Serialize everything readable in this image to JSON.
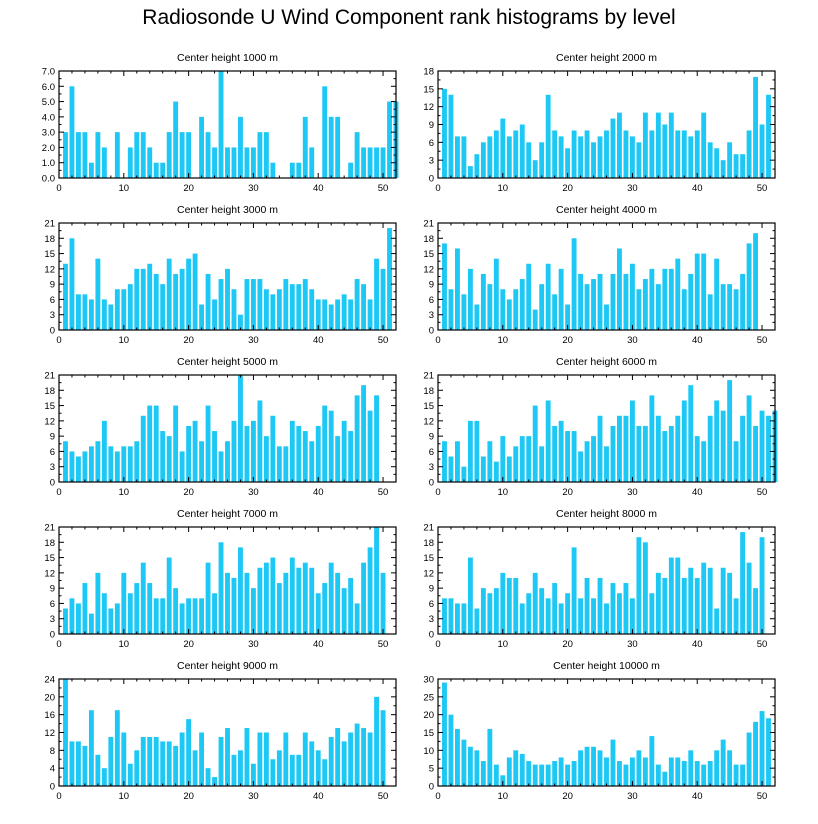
{
  "page_title": "Radiosonde U Wind Component rank histograms by level",
  "bar_color": "#1ec8f5",
  "chart_data": [
    {
      "type": "bar",
      "title": "Center height 1000 m",
      "xlim": [
        0,
        52
      ],
      "ylim": [
        0,
        7.0
      ],
      "xticks": [
        0,
        10,
        20,
        30,
        40,
        50
      ],
      "yticks": [
        0,
        1,
        2,
        3,
        4,
        5,
        6,
        7
      ],
      "ytick_labels": [
        "0.0",
        "1.0",
        "2.0",
        "3.0",
        "4.0",
        "5.0",
        "6.0",
        "7.0"
      ],
      "values": [
        3,
        6,
        3,
        3,
        1,
        3,
        2,
        0,
        3,
        0,
        2,
        3,
        3,
        2,
        1,
        1,
        3,
        5,
        3,
        3,
        0,
        4,
        3,
        2,
        7,
        2,
        2,
        4,
        2,
        2,
        3,
        3,
        1,
        0,
        0,
        1,
        1,
        4,
        2,
        0,
        6,
        4,
        4,
        0,
        1,
        3,
        2,
        2,
        2,
        2,
        5,
        5
      ]
    },
    {
      "type": "bar",
      "title": "Center height 2000 m",
      "xlim": [
        0,
        52
      ],
      "ylim": [
        0,
        18
      ],
      "xticks": [
        0,
        10,
        20,
        30,
        40,
        50
      ],
      "yticks": [
        0,
        3,
        6,
        9,
        12,
        15,
        18
      ],
      "ytick_labels": [
        "0",
        "3",
        "6",
        "9",
        "12",
        "15",
        "18"
      ],
      "values": [
        15,
        14,
        7,
        7,
        2,
        4,
        6,
        7,
        8,
        10,
        7,
        8,
        9,
        6,
        3,
        6,
        14,
        8,
        7,
        5,
        8,
        7,
        8,
        6,
        7,
        8,
        10,
        11,
        8,
        7,
        6,
        11,
        8,
        11,
        9,
        11,
        8,
        8,
        7,
        8,
        11,
        6,
        5,
        3,
        6,
        4,
        4,
        8,
        17,
        9,
        14,
        0
      ]
    },
    {
      "type": "bar",
      "title": "Center height 3000 m",
      "xlim": [
        0,
        52
      ],
      "ylim": [
        0,
        21
      ],
      "xticks": [
        0,
        10,
        20,
        30,
        40,
        50
      ],
      "yticks": [
        0,
        3,
        6,
        9,
        12,
        15,
        18,
        21
      ],
      "ytick_labels": [
        "0",
        "3",
        "6",
        "9",
        "12",
        "15",
        "18",
        "21"
      ],
      "values": [
        13,
        18,
        7,
        7,
        6,
        14,
        6,
        5,
        8,
        8,
        9,
        12,
        12,
        13,
        11,
        9,
        14,
        11,
        12,
        14,
        15,
        5,
        11,
        6,
        10,
        12,
        8,
        3,
        10,
        10,
        10,
        8,
        7,
        8,
        10,
        9,
        9,
        10,
        8,
        6,
        6,
        5,
        6,
        7,
        6,
        10,
        9,
        6,
        14,
        12,
        20,
        0
      ]
    },
    {
      "type": "bar",
      "title": "Center height 4000 m",
      "xlim": [
        0,
        52
      ],
      "ylim": [
        0,
        21
      ],
      "xticks": [
        0,
        10,
        20,
        30,
        40,
        50
      ],
      "yticks": [
        0,
        3,
        6,
        9,
        12,
        15,
        18,
        21
      ],
      "ytick_labels": [
        "0",
        "3",
        "6",
        "9",
        "12",
        "15",
        "18",
        "21"
      ],
      "values": [
        17,
        8,
        16,
        7,
        12,
        5,
        11,
        9,
        14,
        8,
        6,
        8,
        10,
        13,
        4,
        9,
        13,
        7,
        12,
        5,
        18,
        11,
        9,
        10,
        11,
        5,
        11,
        16,
        11,
        13,
        8,
        10,
        12,
        9,
        12,
        12,
        14,
        8,
        11,
        15,
        15,
        7,
        14,
        9,
        9,
        8,
        11,
        17,
        19,
        0,
        0,
        0
      ]
    },
    {
      "type": "bar",
      "title": "Center height 5000 m",
      "xlim": [
        0,
        52
      ],
      "ylim": [
        0,
        21
      ],
      "xticks": [
        0,
        10,
        20,
        30,
        40,
        50
      ],
      "yticks": [
        0,
        3,
        6,
        9,
        12,
        15,
        18,
        21
      ],
      "ytick_labels": [
        "0",
        "3",
        "6",
        "9",
        "12",
        "15",
        "18",
        "21"
      ],
      "values": [
        8,
        6,
        5,
        6,
        7,
        8,
        12,
        7,
        6,
        7,
        7,
        8,
        13,
        15,
        15,
        10,
        9,
        15,
        6,
        11,
        12,
        8,
        15,
        10,
        6,
        8,
        12,
        21,
        11,
        12,
        16,
        9,
        13,
        7,
        7,
        12,
        11,
        10,
        8,
        11,
        15,
        14,
        9,
        12,
        10,
        17,
        19,
        14,
        17,
        0,
        0,
        0
      ]
    },
    {
      "type": "bar",
      "title": "Center height 6000 m",
      "xlim": [
        0,
        52
      ],
      "ylim": [
        0,
        21
      ],
      "xticks": [
        0,
        10,
        20,
        30,
        40,
        50
      ],
      "yticks": [
        0,
        3,
        6,
        9,
        12,
        15,
        18,
        21
      ],
      "ytick_labels": [
        "0",
        "3",
        "6",
        "9",
        "12",
        "15",
        "18",
        "21"
      ],
      "values": [
        8,
        5,
        8,
        3,
        12,
        12,
        5,
        8,
        4,
        9,
        5,
        7,
        9,
        9,
        15,
        7,
        16,
        11,
        12,
        10,
        10,
        6,
        8,
        9,
        13,
        7,
        11,
        13,
        13,
        16,
        11,
        11,
        17,
        13,
        10,
        11,
        13,
        16,
        19,
        9,
        8,
        13,
        16,
        14,
        20,
        8,
        13,
        17,
        11,
        14,
        13,
        14
      ]
    },
    {
      "type": "bar",
      "title": "Center height 7000 m",
      "xlim": [
        0,
        52
      ],
      "ylim": [
        0,
        21
      ],
      "xticks": [
        0,
        10,
        20,
        30,
        40,
        50
      ],
      "yticks": [
        0,
        3,
        6,
        9,
        12,
        15,
        18,
        21
      ],
      "ytick_labels": [
        "0",
        "3",
        "6",
        "9",
        "12",
        "15",
        "18",
        "21"
      ],
      "values": [
        5,
        7,
        6,
        10,
        4,
        12,
        8,
        5,
        6,
        12,
        8,
        10,
        14,
        10,
        7,
        7,
        15,
        9,
        6,
        7,
        7,
        7,
        14,
        8,
        18,
        12,
        11,
        17,
        12,
        9,
        13,
        14,
        15,
        10,
        12,
        15,
        13,
        14,
        13,
        8,
        10,
        14,
        12,
        9,
        11,
        6,
        14,
        17,
        21,
        12,
        0,
        0
      ]
    },
    {
      "type": "bar",
      "title": "Center height 8000 m",
      "xlim": [
        0,
        52
      ],
      "ylim": [
        0,
        21
      ],
      "xticks": [
        0,
        10,
        20,
        30,
        40,
        50
      ],
      "yticks": [
        0,
        3,
        6,
        9,
        12,
        15,
        18,
        21
      ],
      "ytick_labels": [
        "0",
        "3",
        "6",
        "9",
        "12",
        "15",
        "18",
        "21"
      ],
      "values": [
        7,
        7,
        6,
        6,
        15,
        5,
        9,
        8,
        9,
        12,
        11,
        11,
        6,
        8,
        12,
        9,
        7,
        10,
        6,
        8,
        17,
        7,
        11,
        7,
        11,
        6,
        10,
        8,
        10,
        7,
        19,
        18,
        8,
        12,
        11,
        15,
        15,
        11,
        13,
        11,
        14,
        13,
        5,
        13,
        12,
        7,
        20,
        14,
        9,
        19,
        0,
        0
      ]
    },
    {
      "type": "bar",
      "title": "Center height 9000 m",
      "xlim": [
        0,
        52
      ],
      "ylim": [
        0,
        24
      ],
      "xticks": [
        0,
        10,
        20,
        30,
        40,
        50
      ],
      "yticks": [
        0,
        4,
        8,
        12,
        16,
        20,
        24
      ],
      "ytick_labels": [
        "0",
        "4",
        "8",
        "12",
        "16",
        "20",
        "24"
      ],
      "values": [
        24,
        10,
        10,
        9,
        17,
        7,
        4,
        11,
        17,
        12,
        5,
        8,
        11,
        11,
        11,
        10,
        10,
        9,
        12,
        15,
        8,
        12,
        4,
        2,
        11,
        13,
        7,
        8,
        13,
        5,
        12,
        12,
        6,
        8,
        12,
        7,
        7,
        12,
        10,
        8,
        6,
        11,
        13,
        10,
        12,
        14,
        13,
        12,
        20,
        17,
        0,
        0
      ]
    },
    {
      "type": "bar",
      "title": "Center height 10000 m",
      "xlim": [
        0,
        52
      ],
      "ylim": [
        0,
        30
      ],
      "xticks": [
        0,
        10,
        20,
        30,
        40,
        50
      ],
      "yticks": [
        0,
        5,
        10,
        15,
        20,
        25,
        30
      ],
      "ytick_labels": [
        "0",
        "5",
        "10",
        "15",
        "20",
        "25",
        "30"
      ],
      "values": [
        29,
        20,
        16,
        13,
        11,
        10,
        7,
        16,
        6,
        3,
        8,
        10,
        9,
        7,
        6,
        6,
        6,
        7,
        8,
        6,
        7,
        10,
        11,
        11,
        10,
        8,
        13,
        7,
        6,
        8,
        10,
        8,
        14,
        6,
        4,
        8,
        8,
        7,
        10,
        7,
        6,
        7,
        10,
        13,
        10,
        6,
        6,
        15,
        18,
        21,
        19,
        0
      ]
    }
  ]
}
